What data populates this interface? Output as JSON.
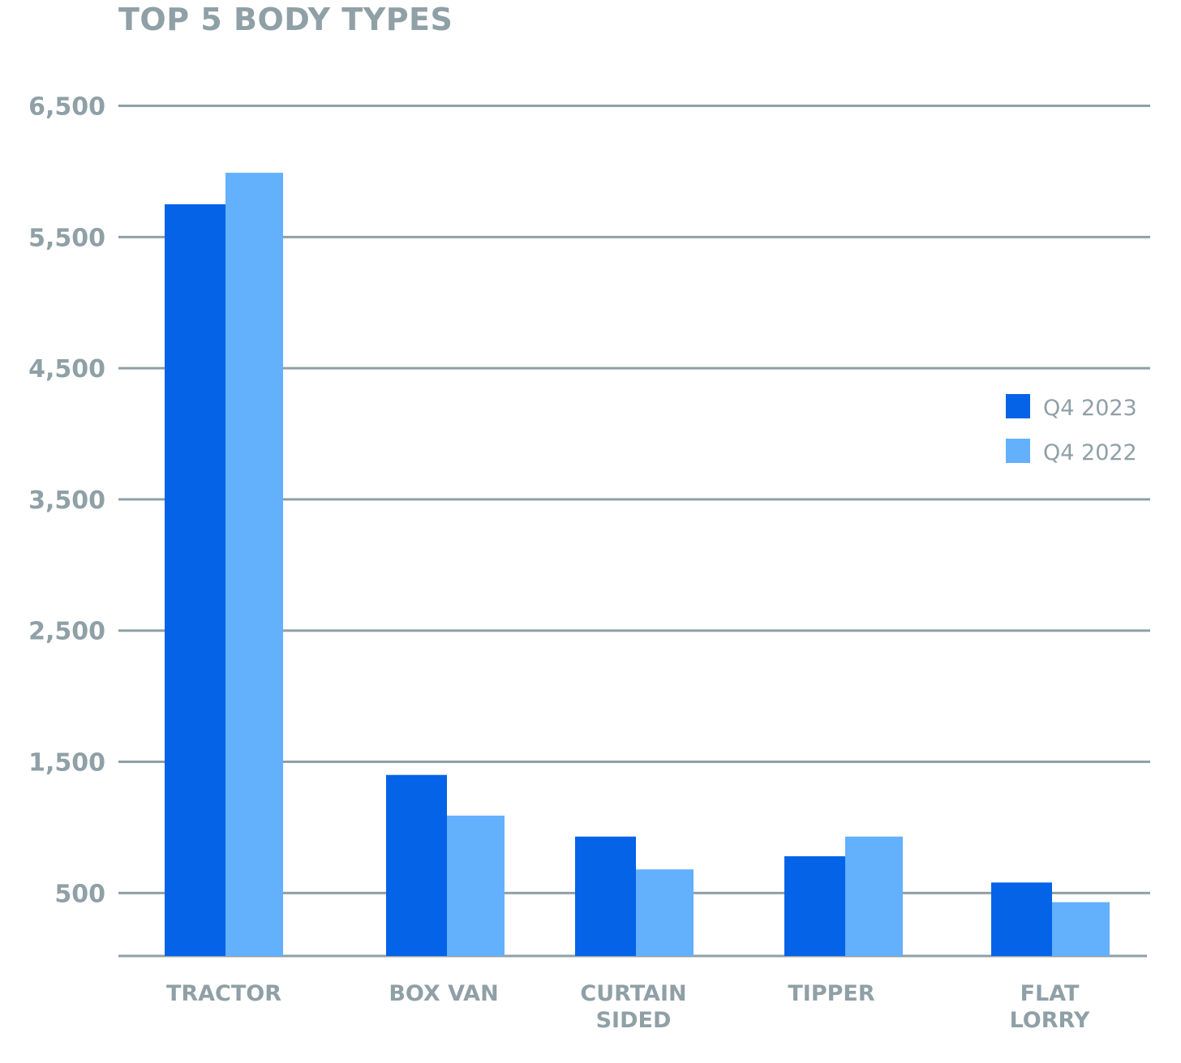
{
  "chart_data": {
    "type": "bar",
    "title": "TOP 5 BODY TYPES",
    "xlabel": "",
    "ylabel": "",
    "categories": [
      [
        "TRACTOR"
      ],
      [
        "BOX VAN"
      ],
      [
        "CURTAIN",
        "SIDED"
      ],
      [
        "TIPPER"
      ],
      [
        "FLAT",
        "LORRY"
      ]
    ],
    "series": [
      {
        "name": "Q4 2023",
        "color": "#0563e8",
        "values": [
          5750,
          1400,
          930,
          780,
          580
        ]
      },
      {
        "name": "Q4 2022",
        "color": "#63b0fd",
        "values": [
          5990,
          1090,
          680,
          930,
          430
        ]
      }
    ],
    "y_ticks": [
      500,
      1500,
      2500,
      3500,
      4500,
      5500,
      6500
    ],
    "y_tick_labels": [
      "500",
      "1,500",
      "2,500",
      "3,500",
      "4,500",
      "5,500",
      "6,500"
    ],
    "ylim": [
      20,
      6500
    ],
    "grid": true,
    "legend_position": "right"
  }
}
